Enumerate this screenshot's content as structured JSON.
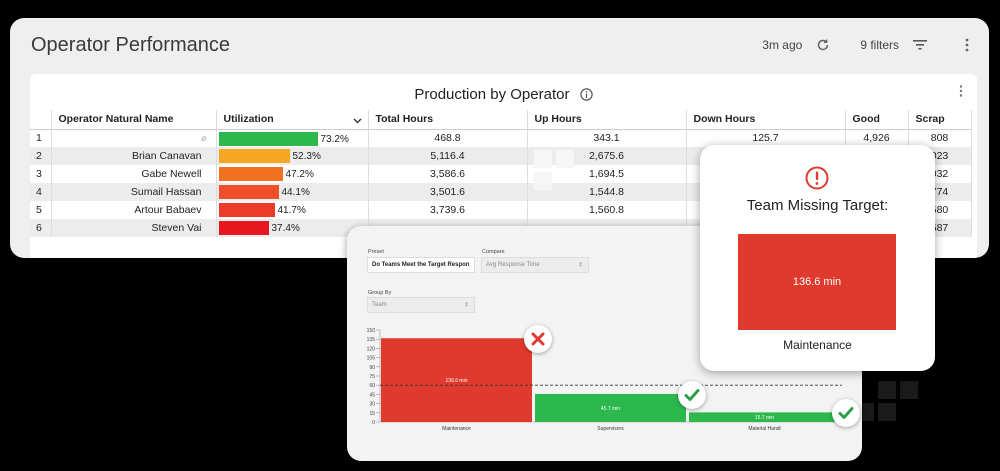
{
  "dashboard": {
    "title": "Operator Performance",
    "last_updated": "3m ago",
    "filters_label": "9 filters"
  },
  "widget": {
    "title": "Production by Operator",
    "columns": [
      "Operator Natural Name",
      "Utilization",
      "Total Hours",
      "Up Hours",
      "Down Hours",
      "Good",
      "Scrap"
    ],
    "rows": [
      {
        "idx": "1",
        "name": "",
        "util": 73.2,
        "util_label": "73.2%",
        "total": "468.8",
        "up": "343.1",
        "down": "125.7",
        "good": "4,926",
        "scrap": "808",
        "color": "#2db84d"
      },
      {
        "idx": "2",
        "name": "Brian Canavan",
        "util": 52.3,
        "util_label": "52.3%",
        "total": "5,116.4",
        "up": "2,675.6",
        "down": "",
        "good": "",
        "scrap": "023",
        "color": "#f5a623"
      },
      {
        "idx": "3",
        "name": "Gabe Newell",
        "util": 47.2,
        "util_label": "47.2%",
        "total": "3,586.6",
        "up": "1,694.5",
        "down": "",
        "good": "",
        "scrap": "032",
        "color": "#f37021"
      },
      {
        "idx": "4",
        "name": "Sumail Hassan",
        "util": 44.1,
        "util_label": "44.1%",
        "total": "3,501.6",
        "up": "1,544.8",
        "down": "",
        "good": "",
        "scrap": "774",
        "color": "#ef4f28"
      },
      {
        "idx": "5",
        "name": "Artour Babaev",
        "util": 41.7,
        "util_label": "41.7%",
        "total": "3,739.6",
        "up": "1,560.8",
        "down": "",
        "good": "",
        "scrap": "580",
        "color": "#ec3b27"
      },
      {
        "idx": "6",
        "name": "Steven Vai",
        "util": 37.4,
        "util_label": "37.4%",
        "total": "",
        "up": "",
        "down": "",
        "good": "",
        "scrap": "587",
        "color": "#e8161f"
      }
    ]
  },
  "preset_panel": {
    "preset_label": "Preset",
    "preset_value": "Do Teams Meet the Target Respon",
    "compare_label": "Compare",
    "compare_value": "Avg Response Time",
    "group_by_label": "Group By",
    "group_by_value": "Team"
  },
  "chart_data": {
    "type": "bar",
    "categories": [
      "Maintenance",
      "Supervisors",
      "Material Handl"
    ],
    "values": [
      136.6,
      45.7,
      15.7
    ],
    "value_labels": [
      "136.6 min",
      "45.7 min",
      "15.7 min"
    ],
    "colors": [
      "#e03a2e",
      "#2db84d",
      "#2db84d"
    ],
    "status": [
      "missed",
      "met",
      "met"
    ],
    "target": 60,
    "yticks": [
      "0",
      "15",
      "30",
      "45",
      "60",
      "75",
      "90",
      "105",
      "120",
      "135",
      "150"
    ],
    "ylim": [
      0,
      150
    ]
  },
  "team_card": {
    "title": "Team Missing Target:",
    "value": "136.6 min",
    "team": "Maintenance"
  }
}
